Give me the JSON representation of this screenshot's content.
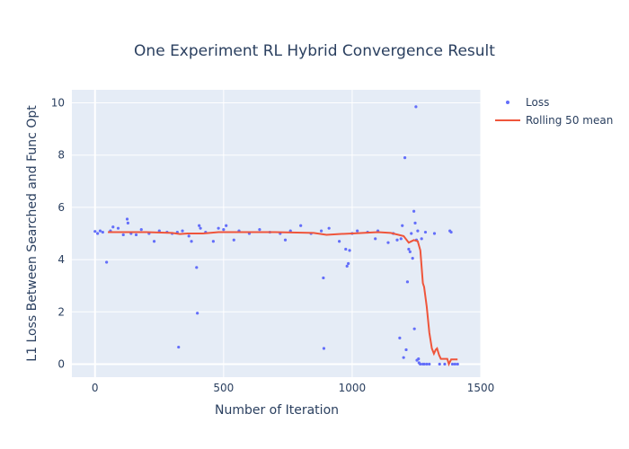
{
  "colors": {
    "loss": "#636efa",
    "rolling": "#ef553b",
    "plot_bg": "#e5ecf6"
  },
  "chart_data": {
    "type": "scatter",
    "title": "One Experiment RL Hybrid Convergence Result",
    "xlabel": "Number of Iteration",
    "ylabel": "L1 Loss Between Searched and Func Opt",
    "xlim": [
      -90,
      1500
    ],
    "ylim": [
      -0.5,
      10.5
    ],
    "xticks": [
      0,
      500,
      1000,
      1500
    ],
    "yticks": [
      0,
      2,
      4,
      6,
      8,
      10
    ],
    "grid": true,
    "legend_position": "top-right",
    "series": [
      {
        "name": "Loss",
        "mode": "markers",
        "points": [
          [
            0,
            5.08
          ],
          [
            10,
            5.0
          ],
          [
            20,
            5.1
          ],
          [
            30,
            5.05
          ],
          [
            45,
            3.9
          ],
          [
            60,
            5.1
          ],
          [
            70,
            5.25
          ],
          [
            90,
            5.2
          ],
          [
            110,
            4.95
          ],
          [
            125,
            5.55
          ],
          [
            128,
            5.4
          ],
          [
            140,
            5.0
          ],
          [
            160,
            4.95
          ],
          [
            180,
            5.15
          ],
          [
            210,
            5.0
          ],
          [
            230,
            4.7
          ],
          [
            250,
            5.1
          ],
          [
            280,
            5.05
          ],
          [
            300,
            5.0
          ],
          [
            320,
            5.05
          ],
          [
            325,
            0.65
          ],
          [
            340,
            5.1
          ],
          [
            365,
            4.9
          ],
          [
            375,
            4.7
          ],
          [
            395,
            3.7
          ],
          [
            398,
            1.95
          ],
          [
            405,
            5.3
          ],
          [
            410,
            5.2
          ],
          [
            430,
            5.05
          ],
          [
            460,
            4.7
          ],
          [
            480,
            5.2
          ],
          [
            500,
            5.15
          ],
          [
            510,
            5.3
          ],
          [
            540,
            4.75
          ],
          [
            560,
            5.1
          ],
          [
            600,
            5.0
          ],
          [
            640,
            5.15
          ],
          [
            680,
            5.05
          ],
          [
            720,
            5.0
          ],
          [
            740,
            4.75
          ],
          [
            760,
            5.1
          ],
          [
            800,
            5.3
          ],
          [
            840,
            5.0
          ],
          [
            880,
            5.1
          ],
          [
            888,
            3.3
          ],
          [
            890,
            0.6
          ],
          [
            910,
            5.2
          ],
          [
            950,
            4.7
          ],
          [
            975,
            4.4
          ],
          [
            980,
            3.75
          ],
          [
            985,
            3.85
          ],
          [
            990,
            4.35
          ],
          [
            1000,
            5.0
          ],
          [
            1020,
            5.1
          ],
          [
            1060,
            5.05
          ],
          [
            1090,
            4.8
          ],
          [
            1100,
            5.1
          ],
          [
            1140,
            4.65
          ],
          [
            1160,
            5.0
          ],
          [
            1175,
            4.75
          ],
          [
            1185,
            1.0
          ],
          [
            1190,
            4.8
          ],
          [
            1195,
            5.3
          ],
          [
            1200,
            0.25
          ],
          [
            1205,
            7.9
          ],
          [
            1210,
            0.55
          ],
          [
            1215,
            3.15
          ],
          [
            1220,
            4.4
          ],
          [
            1225,
            4.3
          ],
          [
            1230,
            5.0
          ],
          [
            1235,
            4.05
          ],
          [
            1240,
            5.85
          ],
          [
            1242,
            1.35
          ],
          [
            1245,
            5.4
          ],
          [
            1248,
            9.85
          ],
          [
            1250,
            4.75
          ],
          [
            1252,
            0.15
          ],
          [
            1255,
            5.1
          ],
          [
            1258,
            0.2
          ],
          [
            1260,
            0.05
          ],
          [
            1265,
            0.0
          ],
          [
            1270,
            4.8
          ],
          [
            1275,
            0.0
          ],
          [
            1280,
            0.0
          ],
          [
            1285,
            5.05
          ],
          [
            1290,
            0.0
          ],
          [
            1300,
            0.0
          ],
          [
            1320,
            5.0
          ],
          [
            1340,
            0.0
          ],
          [
            1360,
            0.0
          ],
          [
            1380,
            5.1
          ],
          [
            1385,
            5.05
          ],
          [
            1390,
            0.0
          ],
          [
            1400,
            0.0
          ],
          [
            1410,
            0.0
          ]
        ]
      },
      {
        "name": "Rolling 50 mean",
        "mode": "lines",
        "points": [
          [
            50,
            5.05
          ],
          [
            100,
            5.05
          ],
          [
            200,
            5.05
          ],
          [
            300,
            5.02
          ],
          [
            330,
            4.98
          ],
          [
            360,
            5.0
          ],
          [
            420,
            5.0
          ],
          [
            480,
            5.05
          ],
          [
            550,
            5.05
          ],
          [
            700,
            5.05
          ],
          [
            850,
            5.02
          ],
          [
            880,
            4.98
          ],
          [
            900,
            4.95
          ],
          [
            950,
            4.98
          ],
          [
            1000,
            5.0
          ],
          [
            1100,
            5.05
          ],
          [
            1150,
            5.02
          ],
          [
            1200,
            4.9
          ],
          [
            1220,
            4.65
          ],
          [
            1240,
            4.75
          ],
          [
            1255,
            4.7
          ],
          [
            1265,
            4.35
          ],
          [
            1275,
            3.1
          ],
          [
            1280,
            2.95
          ],
          [
            1290,
            2.2
          ],
          [
            1300,
            1.2
          ],
          [
            1310,
            0.6
          ],
          [
            1318,
            0.4
          ],
          [
            1325,
            0.55
          ],
          [
            1330,
            0.6
          ],
          [
            1338,
            0.35
          ],
          [
            1345,
            0.2
          ],
          [
            1355,
            0.2
          ],
          [
            1370,
            0.2
          ],
          [
            1376,
            0.0
          ],
          [
            1385,
            0.18
          ],
          [
            1400,
            0.18
          ],
          [
            1410,
            0.18
          ]
        ]
      }
    ]
  }
}
